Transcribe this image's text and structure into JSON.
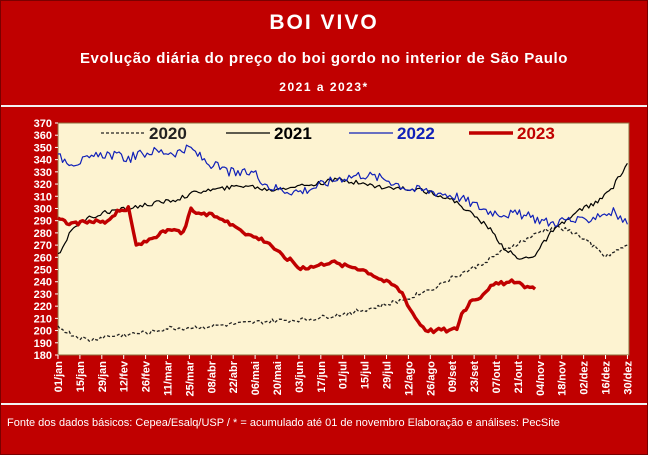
{
  "header": {
    "title": "BOI VIVO",
    "subtitle": "Evolução diária do preço do boi gordo no interior de São Paulo",
    "period": "2021 a 2023*"
  },
  "footer": {
    "source": "Fonte dos dados básicos: Cepea/Esalq/USP   /  * = acumulado até 01 de novembro    Elaboração e análises: PecSite"
  },
  "colors": {
    "background": "#c00000",
    "plot": "#fdf3d1",
    "s2020": "#222222",
    "s2021": "#000000",
    "s2022": "#1020b8",
    "s2023": "#c00000"
  },
  "chart_data": {
    "type": "line",
    "title": "BOI VIVO",
    "ylim": [
      180,
      370
    ],
    "yticks": [
      "180",
      "190",
      "200",
      "210",
      "220",
      "230",
      "240",
      "250",
      "260",
      "270",
      "280",
      "290",
      "300",
      "310",
      "320",
      "330",
      "340",
      "350",
      "360",
      "370"
    ],
    "xlim": [
      0,
      365
    ],
    "xticks": [
      {
        "day": 0,
        "label": "01/jan"
      },
      {
        "day": 14,
        "label": "15/jan"
      },
      {
        "day": 28,
        "label": "29/jan"
      },
      {
        "day": 42,
        "label": "12/fev"
      },
      {
        "day": 56,
        "label": "26/fev"
      },
      {
        "day": 70,
        "label": "11/mar"
      },
      {
        "day": 84,
        "label": "25/mar"
      },
      {
        "day": 98,
        "label": "08/abr"
      },
      {
        "day": 112,
        "label": "22/abr"
      },
      {
        "day": 126,
        "label": "06/mai"
      },
      {
        "day": 140,
        "label": "20/mai"
      },
      {
        "day": 154,
        "label": "03/jun"
      },
      {
        "day": 168,
        "label": "17/jun"
      },
      {
        "day": 182,
        "label": "01/jul"
      },
      {
        "day": 196,
        "label": "15/jul"
      },
      {
        "day": 210,
        "label": "29/jul"
      },
      {
        "day": 224,
        "label": "12/ago"
      },
      {
        "day": 238,
        "label": "26/ago"
      },
      {
        "day": 252,
        "label": "09/set"
      },
      {
        "day": 266,
        "label": "23/set"
      },
      {
        "day": 280,
        "label": "07/out"
      },
      {
        "day": 294,
        "label": "21/out"
      },
      {
        "day": 308,
        "label": "04/nov"
      },
      {
        "day": 322,
        "label": "18/nov"
      },
      {
        "day": 336,
        "label": "02/dez"
      },
      {
        "day": 350,
        "label": "16/dez"
      },
      {
        "day": 364,
        "label": "30/dez"
      }
    ],
    "legend_position": "top",
    "series": [
      {
        "name": "2020",
        "style": "dashed",
        "color": "#222222",
        "x": [
          0,
          10,
          20,
          30,
          45,
          60,
          70,
          80,
          100,
          120,
          140,
          160,
          180,
          200,
          220,
          240,
          250,
          260,
          270,
          280,
          290,
          300,
          310,
          320,
          330,
          340,
          350,
          357,
          364
        ],
        "y": [
          203,
          196,
          192,
          195,
          197,
          199,
          202,
          202,
          204,
          206,
          208,
          209,
          213,
          218,
          225,
          235,
          242,
          248,
          254,
          262,
          269,
          275,
          282,
          285,
          280,
          272,
          260,
          265,
          270
        ]
      },
      {
        "name": "2021",
        "style": "solid",
        "color": "#000000",
        "x": [
          0,
          10,
          20,
          30,
          45,
          60,
          75,
          90,
          105,
          120,
          135,
          150,
          165,
          180,
          195,
          210,
          225,
          240,
          255,
          265,
          275,
          285,
          295,
          305,
          315,
          325,
          335,
          345,
          355,
          364
        ],
        "y": [
          262,
          285,
          292,
          297,
          300,
          304,
          307,
          314,
          316,
          319,
          315,
          318,
          320,
          324,
          320,
          317,
          316,
          313,
          305,
          295,
          285,
          268,
          258,
          262,
          280,
          290,
          300,
          305,
          318,
          337
        ]
      },
      {
        "name": "2022",
        "style": "solid",
        "color": "#1020b8",
        "x": [
          0,
          10,
          20,
          30,
          45,
          60,
          75,
          85,
          95,
          105,
          115,
          125,
          135,
          145,
          155,
          165,
          180,
          195,
          210,
          225,
          240,
          255,
          265,
          275,
          285,
          295,
          305,
          315,
          325,
          335,
          345,
          355,
          364
        ],
        "y": [
          342,
          338,
          340,
          345,
          341,
          347,
          346,
          349,
          338,
          332,
          328,
          330,
          318,
          315,
          314,
          318,
          325,
          328,
          324,
          316,
          314,
          310,
          304,
          298,
          296,
          295,
          292,
          288,
          291,
          289,
          295,
          297,
          287
        ]
      },
      {
        "name": "2023",
        "style": "thick",
        "color": "#c00000",
        "x": [
          0,
          10,
          20,
          30,
          38,
          45,
          50,
          55,
          60,
          70,
          80,
          85,
          90,
          95,
          100,
          105,
          110,
          115,
          120,
          125,
          130,
          135,
          140,
          145,
          150,
          155,
          160,
          165,
          170,
          175,
          180,
          185,
          190,
          195,
          200,
          205,
          210,
          215,
          220,
          225,
          230,
          235,
          240,
          245,
          250,
          255,
          258,
          262,
          265,
          270,
          275,
          280,
          285,
          290,
          295,
          300,
          305
        ],
        "y": [
          291,
          287,
          290,
          289,
          297,
          300,
          270,
          272,
          276,
          282,
          280,
          299,
          296,
          295,
          294,
          292,
          287,
          285,
          280,
          277,
          275,
          272,
          265,
          260,
          257,
          250,
          252,
          253,
          255,
          257,
          254,
          253,
          252,
          250,
          247,
          243,
          240,
          237,
          231,
          218,
          208,
          201,
          200,
          201,
          200,
          202,
          214,
          220,
          225,
          228,
          235,
          238,
          239,
          240,
          238,
          236,
          234
        ]
      }
    ]
  }
}
